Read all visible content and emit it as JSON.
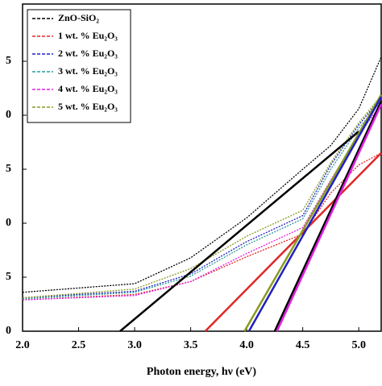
{
  "chart_data": {
    "type": "line",
    "x_label": "Photon energy, hν (eV)",
    "x": [
      2.0,
      3.0,
      3.5,
      4.0,
      4.5,
      4.75,
      5.0,
      5.2
    ],
    "xlim": [
      2.0,
      5.2
    ],
    "xticks": [
      {
        "value": 2,
        "label": "2.0"
      },
      2.5,
      {
        "value": 3,
        "label": "3.0"
      },
      3.5,
      {
        "value": 4,
        "label": "4.0"
      },
      4.5,
      {
        "value": 5,
        "label": "5.0"
      }
    ],
    "ylim": [
      0,
      30.3
    ],
    "yticks": [
      0,
      5,
      {
        "value": 10,
        "label": "0"
      },
      {
        "value": 15,
        "label": "5"
      },
      {
        "value": 20,
        "label": "0"
      },
      {
        "value": 25,
        "label": "5"
      }
    ],
    "series": [
      {
        "name": "ZnO-SiO₂",
        "color": "#000000",
        "values": [
          3.6,
          4.4,
          6.8,
          10.5,
          15.0,
          17.2,
          20.6,
          25.4
        ]
      },
      {
        "name": "1 wt. % Eu₂O₃",
        "color": "#e02828",
        "values": [
          2.9,
          3.4,
          4.6,
          6.9,
          9.0,
          12.8,
          15.4,
          16.5
        ]
      },
      {
        "name": "2 wt. % Eu₂O₃",
        "color": "#2020c0",
        "values": [
          3.1,
          3.7,
          5.3,
          8.3,
          10.7,
          15.4,
          19.1,
          21.6
        ]
      },
      {
        "name": "3 wt. % Eu₂O₃",
        "color": "#2a9a9a",
        "values": [
          3.0,
          3.6,
          5.1,
          8.0,
          10.4,
          15.0,
          18.8,
          21.3
        ]
      },
      {
        "name": "4 wt. % Eu₂O₃",
        "color": "#e020e0",
        "values": [
          2.9,
          3.3,
          4.6,
          7.2,
          9.6,
          14.0,
          18.2,
          21.0
        ]
      },
      {
        "name": "5 wt. % Eu₂O₃",
        "color": "#8a9a20",
        "values": [
          3.1,
          3.9,
          5.8,
          8.8,
          11.2,
          15.6,
          19.3,
          21.8
        ]
      }
    ],
    "fit_lines": [
      {
        "color": "#000000",
        "x": [
          2.87,
          5.0
        ],
        "y": [
          0,
          18.5
        ]
      },
      {
        "color": "#e02828",
        "x": [
          3.63,
          5.2
        ],
        "y": [
          0,
          16.5
        ]
      },
      {
        "color": "#8a9a20",
        "x": [
          3.98,
          5.2
        ],
        "y": [
          0,
          21.9
        ]
      },
      {
        "color": "#2020c0",
        "x": [
          4.02,
          5.2
        ],
        "y": [
          0,
          21.7
        ]
      },
      {
        "color": "#000000",
        "x": [
          4.25,
          5.2
        ],
        "y": [
          0,
          21.3
        ]
      },
      {
        "color": "#e020e0",
        "x": [
          4.27,
          5.2
        ],
        "y": [
          0,
          21.0
        ]
      }
    ]
  }
}
